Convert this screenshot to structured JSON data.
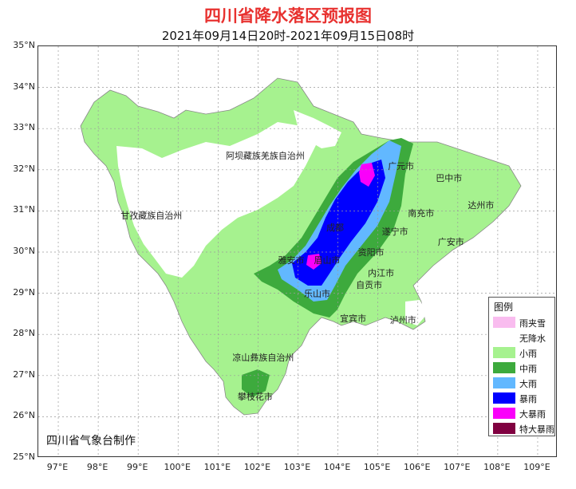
{
  "title": "四川省降水落区预报图",
  "subtitle": "2021年09月14日20时-2021年09月15日08时",
  "credit": "四川省气象台制作",
  "lat_labels": [
    "35°N",
    "34°N",
    "33°N",
    "32°N",
    "31°N",
    "30°N",
    "29°N",
    "28°N",
    "27°N",
    "26°N",
    "25°N"
  ],
  "lon_labels": [
    "97°E",
    "98°E",
    "99°E",
    "100°E",
    "101°E",
    "102°E",
    "103°E",
    "104°E",
    "105°E",
    "106°E",
    "107°E",
    "108°E",
    "109°E"
  ],
  "places": [
    {
      "name": "阿坝藏族羌族自治州",
      "lon": 102.2,
      "lat": 32.35
    },
    {
      "name": "甘孜藏族自治州",
      "lon": 99.35,
      "lat": 30.9
    },
    {
      "name": "凉山彝族自治州",
      "lon": 102.15,
      "lat": 27.45
    },
    {
      "name": "攀枝花市",
      "lon": 101.95,
      "lat": 26.5
    },
    {
      "name": "广元市",
      "lon": 105.6,
      "lat": 32.1
    },
    {
      "name": "巴中市",
      "lon": 106.8,
      "lat": 31.8
    },
    {
      "name": "达州市",
      "lon": 107.6,
      "lat": 31.15
    },
    {
      "name": "南充市",
      "lon": 106.1,
      "lat": 30.95
    },
    {
      "name": "广安市",
      "lon": 106.85,
      "lat": 30.25
    },
    {
      "name": "遂宁市",
      "lon": 105.45,
      "lat": 30.5
    },
    {
      "name": "资阳市",
      "lon": 104.85,
      "lat": 30.0
    },
    {
      "name": "成都",
      "lon": 103.95,
      "lat": 30.6
    },
    {
      "name": "雅安市",
      "lon": 102.85,
      "lat": 29.8
    },
    {
      "name": "眉山市",
      "lon": 103.75,
      "lat": 29.8
    },
    {
      "name": "内江市",
      "lon": 105.1,
      "lat": 29.5
    },
    {
      "name": "自贡市",
      "lon": 104.8,
      "lat": 29.2
    },
    {
      "name": "乐山市",
      "lon": 103.5,
      "lat": 29.0
    },
    {
      "name": "宜宾市",
      "lon": 104.4,
      "lat": 28.4
    },
    {
      "name": "泸州市",
      "lon": 105.65,
      "lat": 28.35
    }
  ],
  "legend": {
    "title": "图例",
    "items": [
      {
        "label": "雨夹雪",
        "color": "#f9bcef"
      },
      {
        "label": "无降水",
        "color": "#ffffff"
      },
      {
        "label": "小雨",
        "color": "#a6f28f"
      },
      {
        "label": "中雨",
        "color": "#3daa3d"
      },
      {
        "label": "大雨",
        "color": "#62b8ff"
      },
      {
        "label": "暴雨",
        "color": "#0000ff"
      },
      {
        "label": "大暴雨",
        "color": "#fa00fa"
      },
      {
        "label": "特大暴雨",
        "color": "#800040"
      }
    ]
  },
  "map_extent": {
    "lon": [
      96.5,
      109.5
    ],
    "lat": [
      25,
      35
    ]
  }
}
